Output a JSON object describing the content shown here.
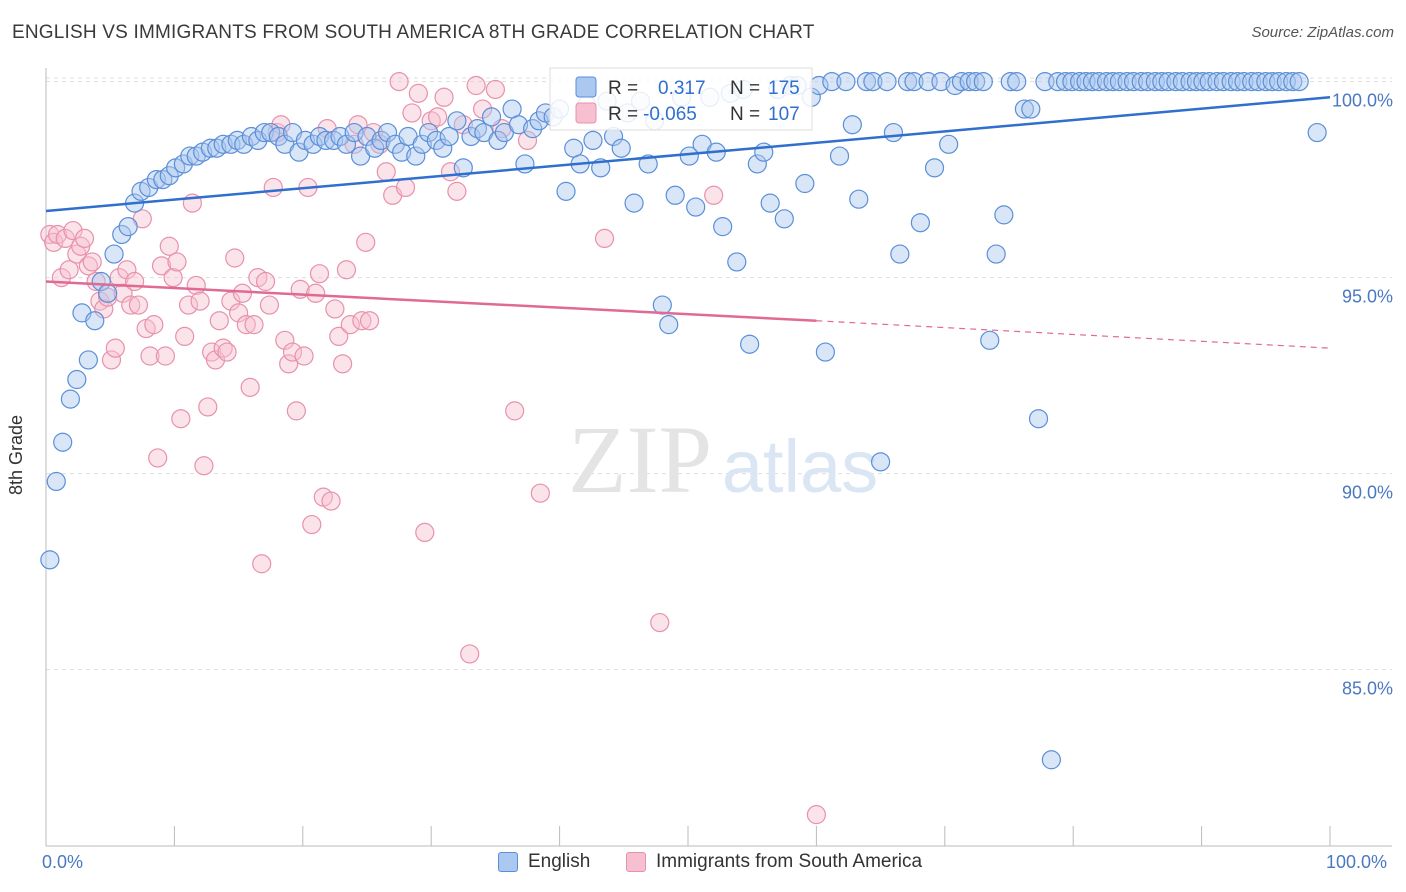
{
  "title": "ENGLISH VS IMMIGRANTS FROM SOUTH AMERICA 8TH GRADE CORRELATION CHART",
  "source": "Source: ZipAtlas.com",
  "watermark": {
    "zip": "ZIP",
    "atlas": "atlas"
  },
  "colors": {
    "english_fill": "#aac8f0",
    "english_stroke": "#5b8fd8",
    "english_line": "#2f6fcd",
    "immigrant_fill": "#f6c0d0",
    "immigrant_stroke": "#e891ad",
    "immigrant_line": "#e06a93",
    "tick_text": "#4a78c2",
    "grid": "#dddddd"
  },
  "stats_box": {
    "rows": [
      {
        "series": "English",
        "r_label": "R =",
        "r_value": "0.317",
        "n_label": "N =",
        "n_value": "175"
      },
      {
        "series": "Immigrants from South America",
        "r_label": "R =",
        "r_value": "-0.065",
        "n_label": "N =",
        "n_value": "107"
      }
    ]
  },
  "legend": {
    "items": [
      {
        "label": "English"
      },
      {
        "label": "Immigrants from South America"
      }
    ]
  },
  "chart_data": {
    "type": "scatter",
    "title": "ENGLISH VS IMMIGRANTS FROM SOUTH AMERICA 8TH GRADE CORRELATION CHART",
    "xlabel": "",
    "ylabel": "8th Grade",
    "xlim": [
      0,
      100
    ],
    "ylim": [
      80.5,
      100.5
    ],
    "x_tick_labels": [
      "0.0%",
      "100.0%"
    ],
    "y_ticks": [
      85,
      90,
      95,
      100
    ],
    "y_tick_labels": [
      "85.0%",
      "90.0%",
      "95.0%",
      "100.0%"
    ],
    "grid": true,
    "legend_position": "bottom",
    "series": [
      {
        "name": "English",
        "r": 0.317,
        "n": 175,
        "trend": {
          "x": [
            0,
            100
          ],
          "y": [
            96.7,
            99.6
          ]
        },
        "points": [
          [
            0.3,
            87.8
          ],
          [
            0.8,
            89.8
          ],
          [
            1.3,
            90.8
          ],
          [
            1.9,
            91.9
          ],
          [
            2.4,
            92.4
          ],
          [
            3.3,
            92.9
          ],
          [
            2.8,
            94.1
          ],
          [
            3.8,
            93.9
          ],
          [
            4.3,
            94.9
          ],
          [
            4.8,
            94.6
          ],
          [
            5.3,
            95.6
          ],
          [
            5.9,
            96.1
          ],
          [
            6.4,
            96.3
          ],
          [
            6.9,
            96.9
          ],
          [
            7.4,
            97.2
          ],
          [
            8.0,
            97.3
          ],
          [
            8.6,
            97.5
          ],
          [
            9.1,
            97.5
          ],
          [
            9.6,
            97.6
          ],
          [
            10.1,
            97.8
          ],
          [
            10.7,
            97.9
          ],
          [
            11.2,
            98.1
          ],
          [
            11.7,
            98.1
          ],
          [
            12.2,
            98.2
          ],
          [
            12.8,
            98.3
          ],
          [
            13.3,
            98.3
          ],
          [
            13.8,
            98.4
          ],
          [
            14.4,
            98.4
          ],
          [
            14.9,
            98.5
          ],
          [
            15.4,
            98.4
          ],
          [
            16.0,
            98.6
          ],
          [
            16.5,
            98.5
          ],
          [
            17.0,
            98.7
          ],
          [
            17.5,
            98.7
          ],
          [
            18.1,
            98.6
          ],
          [
            18.6,
            98.4
          ],
          [
            19.2,
            98.7
          ],
          [
            19.7,
            98.2
          ],
          [
            20.2,
            98.5
          ],
          [
            20.8,
            98.4
          ],
          [
            21.3,
            98.6
          ],
          [
            21.8,
            98.5
          ],
          [
            22.4,
            98.5
          ],
          [
            22.9,
            98.6
          ],
          [
            23.4,
            98.4
          ],
          [
            24.0,
            98.7
          ],
          [
            24.5,
            98.1
          ],
          [
            25.0,
            98.6
          ],
          [
            25.6,
            98.3
          ],
          [
            26.1,
            98.5
          ],
          [
            26.6,
            98.7
          ],
          [
            27.2,
            98.4
          ],
          [
            27.7,
            98.2
          ],
          [
            28.2,
            98.6
          ],
          [
            28.8,
            98.1
          ],
          [
            29.3,
            98.4
          ],
          [
            29.8,
            98.7
          ],
          [
            30.4,
            98.5
          ],
          [
            30.9,
            98.3
          ],
          [
            31.4,
            98.6
          ],
          [
            32.0,
            99.0
          ],
          [
            32.5,
            97.8
          ],
          [
            33.1,
            98.6
          ],
          [
            33.6,
            98.8
          ],
          [
            34.1,
            98.7
          ],
          [
            34.7,
            99.1
          ],
          [
            35.2,
            98.5
          ],
          [
            35.7,
            98.7
          ],
          [
            36.3,
            99.3
          ],
          [
            36.8,
            98.9
          ],
          [
            37.3,
            97.9
          ],
          [
            37.9,
            98.8
          ],
          [
            38.4,
            99.0
          ],
          [
            38.9,
            99.2
          ],
          [
            39.5,
            99.1
          ],
          [
            40.0,
            99.3
          ],
          [
            40.5,
            97.2
          ],
          [
            41.1,
            98.3
          ],
          [
            41.6,
            97.9
          ],
          [
            42.1,
            99.4
          ],
          [
            42.6,
            98.5
          ],
          [
            43.2,
            97.8
          ],
          [
            43.7,
            99.5
          ],
          [
            44.2,
            98.6
          ],
          [
            44.8,
            98.3
          ],
          [
            45.3,
            99.2
          ],
          [
            45.8,
            96.9
          ],
          [
            46.3,
            99.5
          ],
          [
            46.9,
            97.9
          ],
          [
            47.4,
            99.0
          ],
          [
            48.0,
            94.3
          ],
          [
            48.5,
            93.8
          ],
          [
            49.0,
            97.1
          ],
          [
            49.5,
            99.6
          ],
          [
            50.1,
            98.1
          ],
          [
            50.6,
            96.8
          ],
          [
            51.1,
            98.4
          ],
          [
            51.7,
            99.6
          ],
          [
            52.2,
            98.2
          ],
          [
            52.7,
            96.3
          ],
          [
            53.3,
            99.7
          ],
          [
            53.8,
            95.4
          ],
          [
            54.3,
            99.8
          ],
          [
            54.8,
            93.3
          ],
          [
            55.4,
            97.9
          ],
          [
            55.9,
            98.2
          ],
          [
            56.4,
            96.9
          ],
          [
            57.0,
            99.8
          ],
          [
            57.5,
            96.5
          ],
          [
            58.0,
            99.9
          ],
          [
            58.5,
            99.9
          ],
          [
            59.1,
            97.4
          ],
          [
            59.6,
            99.6
          ],
          [
            60.2,
            99.9
          ],
          [
            60.7,
            93.1
          ],
          [
            61.2,
            100.0
          ],
          [
            61.8,
            98.1
          ],
          [
            62.3,
            100.0
          ],
          [
            62.8,
            98.9
          ],
          [
            63.3,
            97.0
          ],
          [
            63.9,
            100.0
          ],
          [
            64.4,
            100.0
          ],
          [
            65.0,
            90.3
          ],
          [
            65.5,
            100.0
          ],
          [
            66.0,
            98.7
          ],
          [
            66.5,
            95.6
          ],
          [
            67.1,
            100.0
          ],
          [
            67.6,
            100.0
          ],
          [
            68.1,
            96.4
          ],
          [
            68.7,
            100.0
          ],
          [
            69.2,
            97.8
          ],
          [
            69.7,
            100.0
          ],
          [
            70.3,
            98.4
          ],
          [
            70.8,
            99.9
          ],
          [
            71.3,
            100.0
          ],
          [
            71.9,
            100.0
          ],
          [
            72.4,
            100.0
          ],
          [
            73.0,
            100.0
          ],
          [
            73.5,
            93.4
          ],
          [
            74.0,
            95.6
          ],
          [
            74.6,
            96.6
          ],
          [
            75.1,
            100.0
          ],
          [
            75.6,
            100.0
          ],
          [
            76.2,
            99.3
          ],
          [
            76.7,
            99.3
          ],
          [
            77.3,
            91.4
          ],
          [
            77.8,
            100.0
          ],
          [
            78.3,
            82.7
          ],
          [
            78.8,
            100.0
          ],
          [
            79.4,
            100.0
          ],
          [
            79.9,
            100.0
          ],
          [
            80.5,
            100.0
          ],
          [
            81.0,
            100.0
          ],
          [
            81.5,
            100.0
          ],
          [
            82.0,
            100.0
          ],
          [
            82.6,
            100.0
          ],
          [
            83.1,
            100.0
          ],
          [
            83.6,
            100.0
          ],
          [
            84.2,
            100.0
          ],
          [
            84.7,
            100.0
          ],
          [
            85.3,
            100.0
          ],
          [
            85.8,
            100.0
          ],
          [
            86.4,
            100.0
          ],
          [
            86.9,
            100.0
          ],
          [
            87.4,
            100.0
          ],
          [
            88.0,
            100.0
          ],
          [
            88.5,
            100.0
          ],
          [
            89.1,
            100.0
          ],
          [
            89.6,
            100.0
          ],
          [
            90.1,
            100.0
          ],
          [
            90.6,
            100.0
          ],
          [
            91.2,
            100.0
          ],
          [
            91.7,
            100.0
          ],
          [
            92.3,
            100.0
          ],
          [
            92.8,
            100.0
          ],
          [
            93.3,
            100.0
          ],
          [
            93.9,
            100.0
          ],
          [
            94.4,
            100.0
          ],
          [
            95.0,
            100.0
          ],
          [
            95.5,
            100.0
          ],
          [
            96.0,
            100.0
          ],
          [
            96.6,
            100.0
          ],
          [
            97.1,
            100.0
          ],
          [
            97.6,
            100.0
          ],
          [
            99.0,
            98.7
          ]
        ]
      },
      {
        "name": "Immigrants from South America",
        "r": -0.065,
        "n": 107,
        "trend": {
          "x": [
            0,
            60
          ],
          "y": [
            94.9,
            93.9
          ]
        },
        "trend_dashed": {
          "x": [
            60,
            100
          ],
          "y": [
            93.9,
            93.2
          ]
        },
        "points": [
          [
            0.3,
            96.1
          ],
          [
            0.6,
            95.9
          ],
          [
            0.9,
            96.1
          ],
          [
            1.2,
            95.0
          ],
          [
            1.5,
            96.0
          ],
          [
            1.8,
            95.2
          ],
          [
            2.1,
            96.2
          ],
          [
            2.4,
            95.6
          ],
          [
            2.7,
            95.8
          ],
          [
            3.0,
            96.0
          ],
          [
            3.3,
            95.3
          ],
          [
            3.6,
            95.4
          ],
          [
            3.9,
            94.9
          ],
          [
            4.2,
            94.4
          ],
          [
            4.5,
            94.2
          ],
          [
            4.8,
            94.5
          ],
          [
            5.1,
            92.9
          ],
          [
            5.4,
            93.2
          ],
          [
            5.7,
            95.0
          ],
          [
            6.0,
            94.6
          ],
          [
            6.3,
            95.2
          ],
          [
            6.6,
            94.3
          ],
          [
            6.9,
            94.9
          ],
          [
            7.2,
            94.3
          ],
          [
            7.5,
            96.5
          ],
          [
            7.8,
            93.7
          ],
          [
            8.1,
            93.0
          ],
          [
            8.4,
            93.8
          ],
          [
            8.7,
            90.4
          ],
          [
            9.0,
            95.3
          ],
          [
            9.3,
            93.0
          ],
          [
            9.6,
            95.8
          ],
          [
            9.9,
            95.0
          ],
          [
            10.2,
            95.4
          ],
          [
            10.5,
            91.4
          ],
          [
            10.8,
            93.5
          ],
          [
            11.1,
            94.3
          ],
          [
            11.4,
            96.9
          ],
          [
            11.7,
            94.8
          ],
          [
            12.0,
            94.4
          ],
          [
            12.3,
            90.2
          ],
          [
            12.6,
            91.7
          ],
          [
            12.9,
            93.1
          ],
          [
            13.2,
            92.9
          ],
          [
            13.5,
            93.9
          ],
          [
            13.8,
            93.2
          ],
          [
            14.1,
            93.1
          ],
          [
            14.4,
            94.4
          ],
          [
            14.7,
            95.5
          ],
          [
            15.0,
            94.1
          ],
          [
            15.3,
            94.6
          ],
          [
            15.6,
            93.8
          ],
          [
            15.9,
            92.2
          ],
          [
            16.2,
            93.8
          ],
          [
            16.5,
            95.0
          ],
          [
            16.8,
            87.7
          ],
          [
            17.1,
            94.9
          ],
          [
            17.4,
            94.3
          ],
          [
            17.7,
            97.3
          ],
          [
            18.0,
            98.7
          ],
          [
            18.3,
            98.9
          ],
          [
            18.6,
            93.4
          ],
          [
            18.9,
            92.8
          ],
          [
            19.2,
            93.1
          ],
          [
            19.5,
            91.6
          ],
          [
            19.8,
            94.7
          ],
          [
            20.1,
            93.0
          ],
          [
            20.4,
            97.3
          ],
          [
            20.7,
            88.7
          ],
          [
            21.0,
            94.6
          ],
          [
            21.3,
            95.1
          ],
          [
            21.6,
            89.4
          ],
          [
            21.9,
            98.8
          ],
          [
            22.2,
            89.3
          ],
          [
            22.5,
            94.2
          ],
          [
            22.8,
            93.5
          ],
          [
            23.1,
            92.8
          ],
          [
            23.4,
            95.2
          ],
          [
            23.7,
            93.8
          ],
          [
            24.0,
            98.4
          ],
          [
            24.3,
            98.9
          ],
          [
            24.6,
            93.9
          ],
          [
            24.9,
            95.9
          ],
          [
            25.2,
            93.9
          ],
          [
            25.5,
            98.7
          ],
          [
            26.0,
            98.4
          ],
          [
            26.5,
            97.7
          ],
          [
            27.0,
            97.1
          ],
          [
            27.5,
            100.0
          ],
          [
            28.0,
            97.3
          ],
          [
            28.5,
            99.2
          ],
          [
            29.0,
            99.7
          ],
          [
            29.5,
            88.5
          ],
          [
            30.0,
            99.0
          ],
          [
            30.5,
            99.1
          ],
          [
            31.0,
            99.6
          ],
          [
            31.5,
            97.7
          ],
          [
            32.0,
            97.2
          ],
          [
            32.5,
            98.9
          ],
          [
            33.0,
            85.4
          ],
          [
            33.5,
            99.9
          ],
          [
            34.0,
            99.3
          ],
          [
            35.0,
            99.8
          ],
          [
            35.5,
            98.8
          ],
          [
            36.5,
            91.6
          ],
          [
            37.5,
            98.5
          ],
          [
            38.5,
            89.5
          ],
          [
            43.5,
            96.0
          ],
          [
            47.8,
            86.2
          ],
          [
            52.0,
            97.1
          ],
          [
            60.0,
            81.3
          ]
        ]
      }
    ]
  }
}
